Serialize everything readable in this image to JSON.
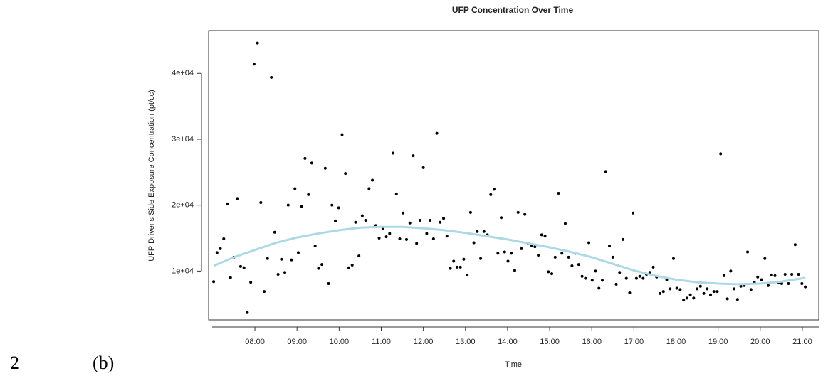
{
  "chart_data": {
    "type": "scatter",
    "title": "UFP Concentration Over Time",
    "x_label": "Time",
    "y_label": "UFP Driver's Side Exposure Concentration (pt/cc)",
    "xlim": [
      6.9,
      21.39
    ],
    "ylim": [
      2600,
      46500
    ],
    "xticks": [
      {
        "value": 8,
        "label": "08:00"
      },
      {
        "value": 9,
        "label": "09:00"
      },
      {
        "value": 10,
        "label": "10:00"
      },
      {
        "value": 11,
        "label": "11:00"
      },
      {
        "value": 12,
        "label": "12:00"
      },
      {
        "value": 13,
        "label": "13:00"
      },
      {
        "value": 14,
        "label": "14:00"
      },
      {
        "value": 15,
        "label": "15:00"
      },
      {
        "value": 16,
        "label": "16:00"
      },
      {
        "value": 17,
        "label": "17:00"
      },
      {
        "value": 18,
        "label": "18:00"
      },
      {
        "value": 19,
        "label": "19:00"
      },
      {
        "value": 20,
        "label": "20:00"
      },
      {
        "value": 21,
        "label": "21:00"
      }
    ],
    "yticks": [
      {
        "value": 10000,
        "label": "1e+04"
      },
      {
        "value": 20000,
        "label": "2e+04"
      },
      {
        "value": 30000,
        "label": "3e+04"
      },
      {
        "value": 40000,
        "label": "4e+04"
      }
    ],
    "points": {
      "color": "#000000",
      "x": [
        7.02,
        7.1,
        7.18,
        7.26,
        7.34,
        7.42,
        7.5,
        7.58,
        7.66,
        7.74,
        7.82,
        7.9,
        7.98,
        8.06,
        8.14,
        8.22,
        8.3,
        8.39,
        8.47,
        8.55,
        8.63,
        8.71,
        8.79,
        8.87,
        8.95,
        9.03,
        9.11,
        9.19,
        9.27,
        9.35,
        9.43,
        9.51,
        9.59,
        9.67,
        9.75,
        9.83,
        9.91,
        9.99,
        10.07,
        10.15,
        10.23,
        10.31,
        10.39,
        10.47,
        10.55,
        10.63,
        10.71,
        10.79,
        10.87,
        10.95,
        11.04,
        11.12,
        11.2,
        11.28,
        11.36,
        11.44,
        11.52,
        11.6,
        11.68,
        11.76,
        11.84,
        11.92,
        12.0,
        12.08,
        12.16,
        12.24,
        12.32,
        12.4,
        12.48,
        12.56,
        12.64,
        12.72,
        12.8,
        12.88,
        12.96,
        13.04,
        13.12,
        13.2,
        13.28,
        13.36,
        13.44,
        13.52,
        13.6,
        13.68,
        13.77,
        13.85,
        13.93,
        14.01,
        14.09,
        14.17,
        14.25,
        14.33,
        14.41,
        14.49,
        14.57,
        14.65,
        14.73,
        14.81,
        14.89,
        14.97,
        15.05,
        15.13,
        15.21,
        15.29,
        15.37,
        15.45,
        15.53,
        15.61,
        15.69,
        15.77,
        15.85,
        15.93,
        16.01,
        16.09,
        16.17,
        16.25,
        16.33,
        16.42,
        16.5,
        16.58,
        16.66,
        16.74,
        16.82,
        16.9,
        16.98,
        17.06,
        17.14,
        17.22,
        17.3,
        17.38,
        17.46,
        17.54,
        17.62,
        17.7,
        17.78,
        17.86,
        17.94,
        18.02,
        18.1,
        18.18,
        18.26,
        18.34,
        18.42,
        18.5,
        18.58,
        18.66,
        18.74,
        18.82,
        18.9,
        18.98,
        19.06,
        19.14,
        19.22,
        19.3,
        19.38,
        19.46,
        19.54,
        19.62,
        19.7,
        19.78,
        19.86,
        19.94,
        20.03,
        20.11,
        20.19,
        20.27,
        20.35,
        20.43,
        20.51,
        20.59,
        20.67,
        20.75,
        20.83,
        20.91,
        20.99,
        21.07
      ],
      "values": [
        8400,
        12800,
        13400,
        14900,
        20200,
        9000,
        12100,
        21000,
        10700,
        10500,
        3700,
        8300,
        41400,
        44600,
        20400,
        6900,
        11900,
        39400,
        15900,
        9500,
        11800,
        9800,
        20000,
        11700,
        22500,
        12800,
        19800,
        27100,
        21600,
        26400,
        13800,
        10400,
        11000,
        25600,
        8100,
        20000,
        17600,
        19600,
        30700,
        24800,
        10500,
        10900,
        17400,
        12300,
        18400,
        17700,
        22500,
        23800,
        16900,
        15000,
        16400,
        15200,
        15700,
        27900,
        21700,
        14900,
        18800,
        14800,
        17300,
        27500,
        14200,
        17700,
        25700,
        15700,
        17700,
        14900,
        30900,
        17400,
        18000,
        15300,
        10400,
        11500,
        10600,
        10600,
        11800,
        9400,
        18900,
        14300,
        16000,
        11900,
        16000,
        15500,
        21600,
        22400,
        12700,
        18100,
        12900,
        11500,
        12700,
        10100,
        18900,
        13400,
        18600,
        14200,
        13900,
        13700,
        12400,
        15500,
        15300,
        9900,
        9600,
        12100,
        21800,
        12700,
        17200,
        12100,
        10800,
        12700,
        11000,
        9200,
        8900,
        14300,
        8600,
        10000,
        7400,
        8600,
        25100,
        13800,
        12100,
        8000,
        9800,
        14800,
        8900,
        6700,
        18800,
        8900,
        9200,
        8900,
        9500,
        9800,
        10600,
        9100,
        6600,
        6900,
        8700,
        7300,
        11900,
        7400,
        7200,
        5600,
        5900,
        6400,
        5900,
        7300,
        7700,
        6600,
        7300,
        6400,
        6900,
        6900,
        27800,
        9300,
        5800,
        10000,
        7300,
        5700,
        7700,
        7800,
        12900,
        7200,
        8300,
        9100,
        8700,
        11900,
        7800,
        9400,
        9300,
        8200,
        8100,
        9500,
        8100,
        9500,
        14000,
        9500,
        8100,
        7600
      ]
    },
    "smooth": {
      "color": "#add8e6",
      "x": [
        7.02,
        7.5,
        8,
        8.5,
        9,
        9.5,
        10,
        10.5,
        11,
        11.5,
        12,
        12.5,
        13,
        13.5,
        14,
        14.5,
        15,
        15.5,
        16,
        16.5,
        17,
        17.5,
        18,
        18.5,
        19,
        19.5,
        20,
        20.5,
        21,
        21.07
      ],
      "values": [
        10800,
        12100,
        13200,
        14300,
        15100,
        15700,
        16200,
        16600,
        16700,
        16700,
        16500,
        16200,
        15800,
        15300,
        14800,
        14200,
        13600,
        12900,
        12100,
        11100,
        10100,
        9300,
        8700,
        8300,
        8100,
        8000,
        8100,
        8400,
        8900,
        9000
      ]
    }
  },
  "line_number": "2",
  "figure_label": "(b)"
}
